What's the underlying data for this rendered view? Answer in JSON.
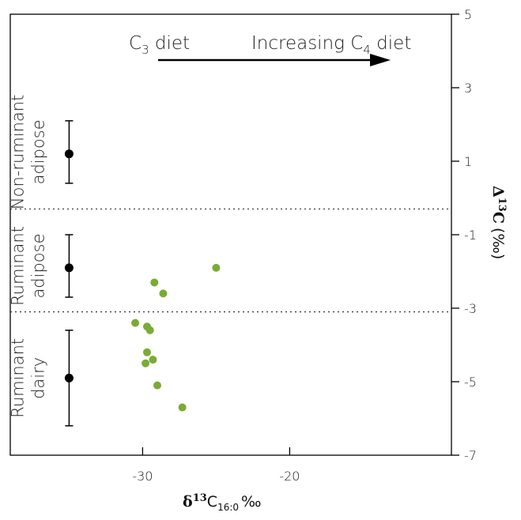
{
  "chart_data": {
    "type": "scatter",
    "title": "",
    "xlabel": "δ13C16:0 ‰",
    "xlabel_parts": {
      "delta": "δ",
      "sup": "13",
      "c": "C",
      "sub": "16:0",
      "unit": "‰"
    },
    "ylabel": "Δ13C (‰)",
    "ylabel_parts": {
      "delta": "Δ",
      "sup": "13",
      "c": "C",
      "unit": "(‰)"
    },
    "xlim": [
      -39,
      -9
    ],
    "ylim": [
      -7,
      5
    ],
    "x_ticks": [
      -30,
      -20
    ],
    "x_tick_labels": [
      "-30",
      "-20"
    ],
    "y_ticks": [
      5,
      3,
      1,
      -1,
      -3,
      -5,
      -7
    ],
    "y_tick_labels": [
      "5",
      "3",
      "1",
      "-1",
      "-3",
      "-5",
      "-7"
    ],
    "y_axis_side": "right",
    "grid": false,
    "separators": [
      -0.3,
      -3.1
    ],
    "annotations": {
      "c3_diet": {
        "c": "C",
        "sub": "3",
        "rest": " diet"
      },
      "c4_diet": {
        "pre": "Increasing C",
        "sub": "4",
        "rest": " diet"
      }
    },
    "reference_ranges": [
      {
        "name": "Non-ruminant adipose",
        "lines": [
          "Non-ruminant",
          "adipose"
        ],
        "x": -35,
        "mean": 1.2,
        "low": 0.4,
        "high": 2.1
      },
      {
        "name": "Ruminant adipose",
        "lines": [
          "Ruminant",
          "adipose"
        ],
        "x": -35,
        "mean": -1.9,
        "low": -2.7,
        "high": -1.0
      },
      {
        "name": "Ruminant dairy",
        "lines": [
          "Ruminant",
          "dairy"
        ],
        "x": -35,
        "mean": -4.9,
        "low": -6.2,
        "high": -3.6
      }
    ],
    "series": [
      {
        "points": [
          {
            "x": -25.0,
            "y": -1.9
          },
          {
            "x": -29.2,
            "y": -2.3
          },
          {
            "x": -28.6,
            "y": -2.6
          },
          {
            "x": -30.5,
            "y": -3.4
          },
          {
            "x": -29.7,
            "y": -3.5
          },
          {
            "x": -29.5,
            "y": -3.6
          },
          {
            "x": -29.7,
            "y": -4.2
          },
          {
            "x": -29.3,
            "y": -4.4
          },
          {
            "x": -29.8,
            "y": -4.5
          },
          {
            "x": -29.0,
            "y": -5.1
          },
          {
            "x": -27.3,
            "y": -5.7
          }
        ]
      }
    ],
    "colors": {
      "points": "#7aab35",
      "reference": "#000000",
      "axis": "#000000"
    }
  }
}
